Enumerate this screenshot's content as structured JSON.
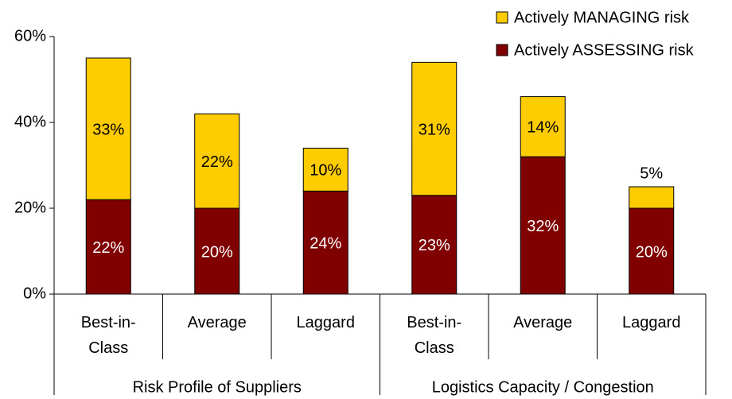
{
  "chart_data": {
    "type": "stacked_bar",
    "categories": [
      "Best-in-Class",
      "Average",
      "Laggard",
      "Best-in-Class",
      "Average",
      "Laggard"
    ],
    "group_labels": [
      "Risk Profile of Suppliers",
      "Logistics Capacity / Congestion"
    ],
    "series": [
      {
        "name": "Actively ASSESSING risk",
        "color": "#800000",
        "label_color": "#ffffff",
        "values": [
          22,
          20,
          24,
          23,
          32,
          20
        ],
        "value_labels": [
          "22%",
          "20%",
          "24%",
          "23%",
          "32%",
          "20%"
        ]
      },
      {
        "name": "Actively MANAGING risk",
        "color": "#ffcc00",
        "label_color": "#000000",
        "values": [
          33,
          22,
          10,
          31,
          14,
          5
        ],
        "value_labels": [
          "33%",
          "22%",
          "10%",
          "31%",
          "14%",
          "5%"
        ]
      }
    ],
    "ylim": [
      0,
      60
    ],
    "yticks": [
      {
        "value": 0,
        "label": "0%"
      },
      {
        "value": 20,
        "label": "20%"
      },
      {
        "value": 40,
        "label": "40%"
      },
      {
        "value": 60,
        "label": "60%"
      }
    ],
    "legend": "top-right"
  }
}
